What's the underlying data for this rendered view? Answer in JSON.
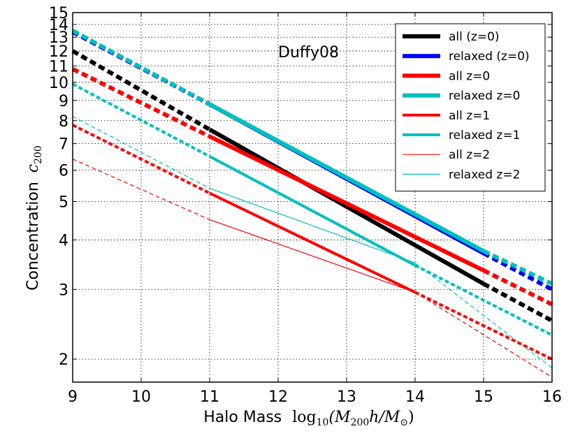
{
  "chart_data": {
    "type": "line",
    "title": "",
    "annotation": "Duffy08",
    "xlabel": "Halo Mass",
    "xlabel_math": {
      "fn": "log",
      "sub": "10",
      "arg": "(M",
      "arg_sub": "200",
      "mid": "h/M",
      "odot": "⊙",
      "close": ")"
    },
    "ylabel": "Concentration",
    "ylabel_math": {
      "sym": "c",
      "sub": "200"
    },
    "xlim": [
      9,
      16
    ],
    "ylim": [
      1.75,
      15
    ],
    "yscale": "log",
    "x_ticks": [
      9,
      10,
      11,
      12,
      13,
      14,
      15,
      16
    ],
    "x_tick_labels": [
      "9",
      "10",
      "11",
      "12",
      "13",
      "14",
      "15",
      "16"
    ],
    "y_ticks": [
      2,
      3,
      4,
      5,
      6,
      7,
      8,
      9,
      10,
      11,
      12,
      13,
      14,
      15
    ],
    "y_tick_labels": [
      "2",
      "3",
      "4",
      "5",
      "6",
      "7",
      "8",
      "9",
      "10",
      "11",
      "12",
      "13",
      "14",
      "15"
    ],
    "grid": true,
    "legend_position": "top-right",
    "series": [
      {
        "name": "all (z=0)",
        "color": "#000000",
        "width": 6,
        "x": [
          9,
          11,
          15,
          16
        ],
        "values": [
          12.0,
          7.6,
          3.1,
          2.5
        ],
        "solid_range": [
          11,
          15
        ]
      },
      {
        "name": "relaxed (z=0)",
        "color": "#0000ff",
        "width": 6,
        "x": [
          9,
          11,
          15,
          16
        ],
        "values": [
          13.4,
          8.8,
          3.7,
          3.0
        ],
        "solid_range": [
          11,
          15
        ]
      },
      {
        "name": "all z=0",
        "color": "#ff0000",
        "width": 6,
        "x": [
          9,
          11,
          15,
          16
        ],
        "values": [
          10.8,
          7.3,
          3.35,
          2.75
        ],
        "solid_range": [
          11,
          15
        ]
      },
      {
        "name": "relaxed z=0",
        "color": "#00bfbf",
        "width": 6,
        "x": [
          9,
          11,
          15,
          16
        ],
        "values": [
          13.5,
          8.8,
          3.75,
          3.1
        ],
        "solid_range": [
          11,
          15
        ]
      },
      {
        "name": "all z=1",
        "color": "#ff0000",
        "width": 4,
        "x": [
          9,
          11,
          14,
          16
        ],
        "values": [
          7.8,
          5.25,
          2.95,
          2.0
        ],
        "solid_range": [
          11,
          14
        ]
      },
      {
        "name": "relaxed z=1",
        "color": "#00bfbf",
        "width": 4,
        "x": [
          9,
          11,
          14,
          16
        ],
        "values": [
          9.9,
          6.5,
          3.45,
          2.3
        ],
        "solid_range": [
          11,
          14
        ]
      },
      {
        "name": "all z=2",
        "color": "#ff0000",
        "width": 1.2,
        "x": [
          9,
          11,
          14,
          16
        ],
        "values": [
          6.4,
          4.5,
          2.95,
          1.8
        ],
        "solid_range": [
          11,
          14
        ]
      },
      {
        "name": "relaxed z=2",
        "color": "#00bfbf",
        "width": 1.2,
        "x": [
          9,
          11,
          14,
          16
        ],
        "values": [
          8.2,
          5.4,
          3.5,
          1.9
        ],
        "solid_range": [
          11,
          14
        ]
      }
    ]
  }
}
